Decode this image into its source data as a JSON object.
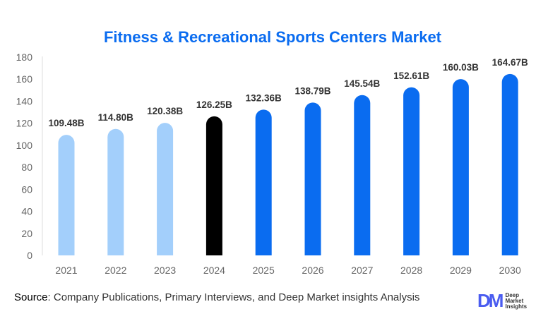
{
  "chart_data": {
    "type": "bar",
    "title": "Fitness & Recreational Sports Centers Market",
    "categories": [
      "2021",
      "2022",
      "2023",
      "2024",
      "2025",
      "2026",
      "2027",
      "2028",
      "2029",
      "2030"
    ],
    "values": [
      109.48,
      114.8,
      120.38,
      126.25,
      132.36,
      138.79,
      145.54,
      152.61,
      160.03,
      164.67
    ],
    "data_labels": [
      "109.48B",
      "114.80B",
      "120.38B",
      "126.25B",
      "132.36B",
      "138.79B",
      "145.54B",
      "152.61B",
      "160.03B",
      "164.67B"
    ],
    "ylim": [
      0,
      180
    ],
    "yticks": [
      0,
      20,
      40,
      60,
      80,
      100,
      120,
      140,
      160,
      180
    ],
    "grid": false,
    "bar_colors": [
      "#a3cffb",
      "#a3cffb",
      "#a3cffb",
      "#000000",
      "#0a6cf0",
      "#0a6cf0",
      "#0a6cf0",
      "#0a6cf0",
      "#0a6cf0",
      "#0a6cf0"
    ]
  },
  "footer": {
    "source_label": "Source",
    "source_text": ": Company Publications, Primary Interviews, and Deep Market insights Analysis"
  },
  "logo": {
    "mark": "DM",
    "line1": "Deep",
    "line2": "Market",
    "line3": "Insights"
  }
}
